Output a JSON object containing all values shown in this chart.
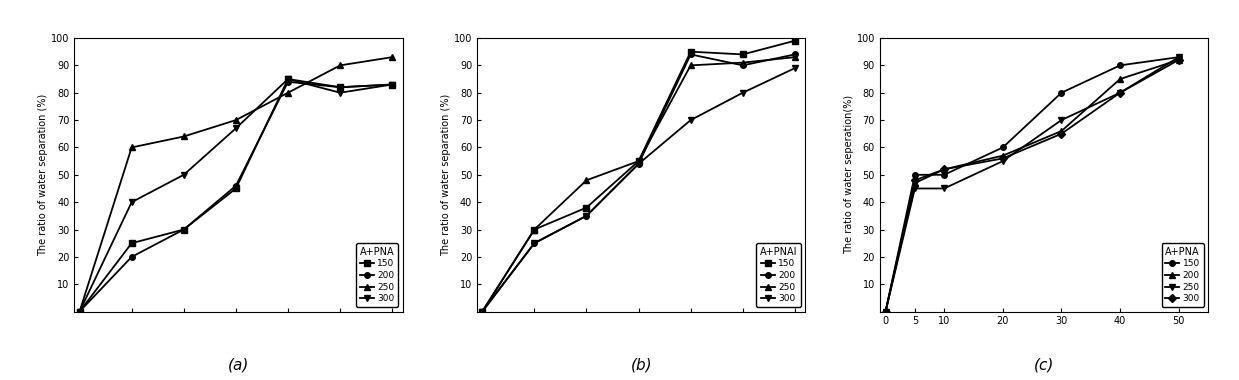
{
  "subplots": [
    {
      "subplot_label": "(a)",
      "ylabel": "The ratio of water separation (%)",
      "legend_title": "A+PNA",
      "ylim": [
        0,
        100
      ],
      "yticks": [
        10,
        20,
        30,
        40,
        50,
        60,
        70,
        80,
        90,
        100
      ],
      "xticks": [
        0,
        1,
        2,
        3,
        4,
        5,
        6
      ],
      "xticklabels": [
        "",
        "",
        "",
        "",
        "",
        "",
        ""
      ],
      "xlim": [
        -0.1,
        6.2
      ],
      "series": [
        {
          "label": "150",
          "x": [
            0,
            1,
            2,
            3,
            4,
            5,
            6
          ],
          "y": [
            0,
            25,
            30,
            45,
            85,
            82,
            83
          ],
          "marker": "s"
        },
        {
          "label": "200",
          "x": [
            0,
            1,
            2,
            3,
            4,
            5,
            6
          ],
          "y": [
            0,
            20,
            30,
            46,
            84,
            82,
            83
          ],
          "marker": "o"
        },
        {
          "label": "250",
          "x": [
            0,
            1,
            2,
            3,
            4,
            5,
            6
          ],
          "y": [
            0,
            60,
            64,
            70,
            80,
            90,
            93
          ],
          "marker": "^"
        },
        {
          "label": "300",
          "x": [
            0,
            1,
            2,
            3,
            4,
            5,
            6
          ],
          "y": [
            0,
            40,
            50,
            67,
            85,
            80,
            83
          ],
          "marker": "v"
        }
      ]
    },
    {
      "subplot_label": "(b)",
      "ylabel": "The ratio of water separation (%)",
      "legend_title": "A+PNAI",
      "ylim": [
        0,
        100
      ],
      "yticks": [
        10,
        20,
        30,
        40,
        50,
        60,
        70,
        80,
        90,
        100
      ],
      "xticks": [
        0,
        1,
        2,
        3,
        4,
        5,
        6
      ],
      "xticklabels": [
        "",
        "",
        "",
        "",
        "",
        "",
        ""
      ],
      "xlim": [
        -0.1,
        6.2
      ],
      "series": [
        {
          "label": "150",
          "x": [
            0,
            1,
            2,
            3,
            4,
            5,
            6
          ],
          "y": [
            0,
            30,
            38,
            55,
            95,
            94,
            99
          ],
          "marker": "s"
        },
        {
          "label": "200",
          "x": [
            0,
            1,
            2,
            3,
            4,
            5,
            6
          ],
          "y": [
            0,
            25,
            35,
            54,
            94,
            90,
            94
          ],
          "marker": "o"
        },
        {
          "label": "250",
          "x": [
            0,
            1,
            2,
            3,
            4,
            5,
            6
          ],
          "y": [
            0,
            30,
            48,
            55,
            90,
            91,
            93
          ],
          "marker": "^"
        },
        {
          "label": "300",
          "x": [
            0,
            1,
            2,
            3,
            4,
            5,
            6
          ],
          "y": [
            0,
            25,
            35,
            54,
            70,
            80,
            89
          ],
          "marker": "v"
        }
      ]
    },
    {
      "subplot_label": "(c)",
      "ylabel": "The ratio of water seperation(%)",
      "legend_title": "A+PNA",
      "ylim": [
        0,
        100
      ],
      "yticks": [
        10,
        20,
        30,
        40,
        50,
        60,
        70,
        80,
        90,
        100
      ],
      "xticks": [
        0,
        5,
        10,
        20,
        30,
        40,
        50
      ],
      "xticklabels": [
        "0",
        "5",
        "10",
        "20",
        "30",
        "40",
        "50"
      ],
      "xlim": [
        -1,
        55
      ],
      "series": [
        {
          "label": "150",
          "x": [
            0,
            5,
            10,
            20,
            30,
            40,
            50
          ],
          "y": [
            0,
            50,
            50,
            60,
            80,
            90,
            93
          ],
          "marker": "o"
        },
        {
          "label": "200",
          "x": [
            0,
            5,
            10,
            20,
            30,
            40,
            50
          ],
          "y": [
            0,
            47,
            52,
            57,
            66,
            85,
            92
          ],
          "marker": "^"
        },
        {
          "label": "250",
          "x": [
            0,
            5,
            10,
            20,
            30,
            40,
            50
          ],
          "y": [
            0,
            45,
            45,
            55,
            70,
            80,
            93
          ],
          "marker": "v"
        },
        {
          "label": "300",
          "x": [
            0,
            5,
            10,
            20,
            30,
            40,
            50
          ],
          "y": [
            0,
            48,
            52,
            56,
            65,
            80,
            92
          ],
          "marker": "D"
        }
      ]
    }
  ],
  "line_color": "#000000",
  "linewidth": 1.3,
  "markersize": 4,
  "tick_fontsize": 7,
  "ylabel_fontsize": 7,
  "legend_fontsize": 6.5,
  "legend_title_fontsize": 7,
  "sublabel_fontsize": 11
}
